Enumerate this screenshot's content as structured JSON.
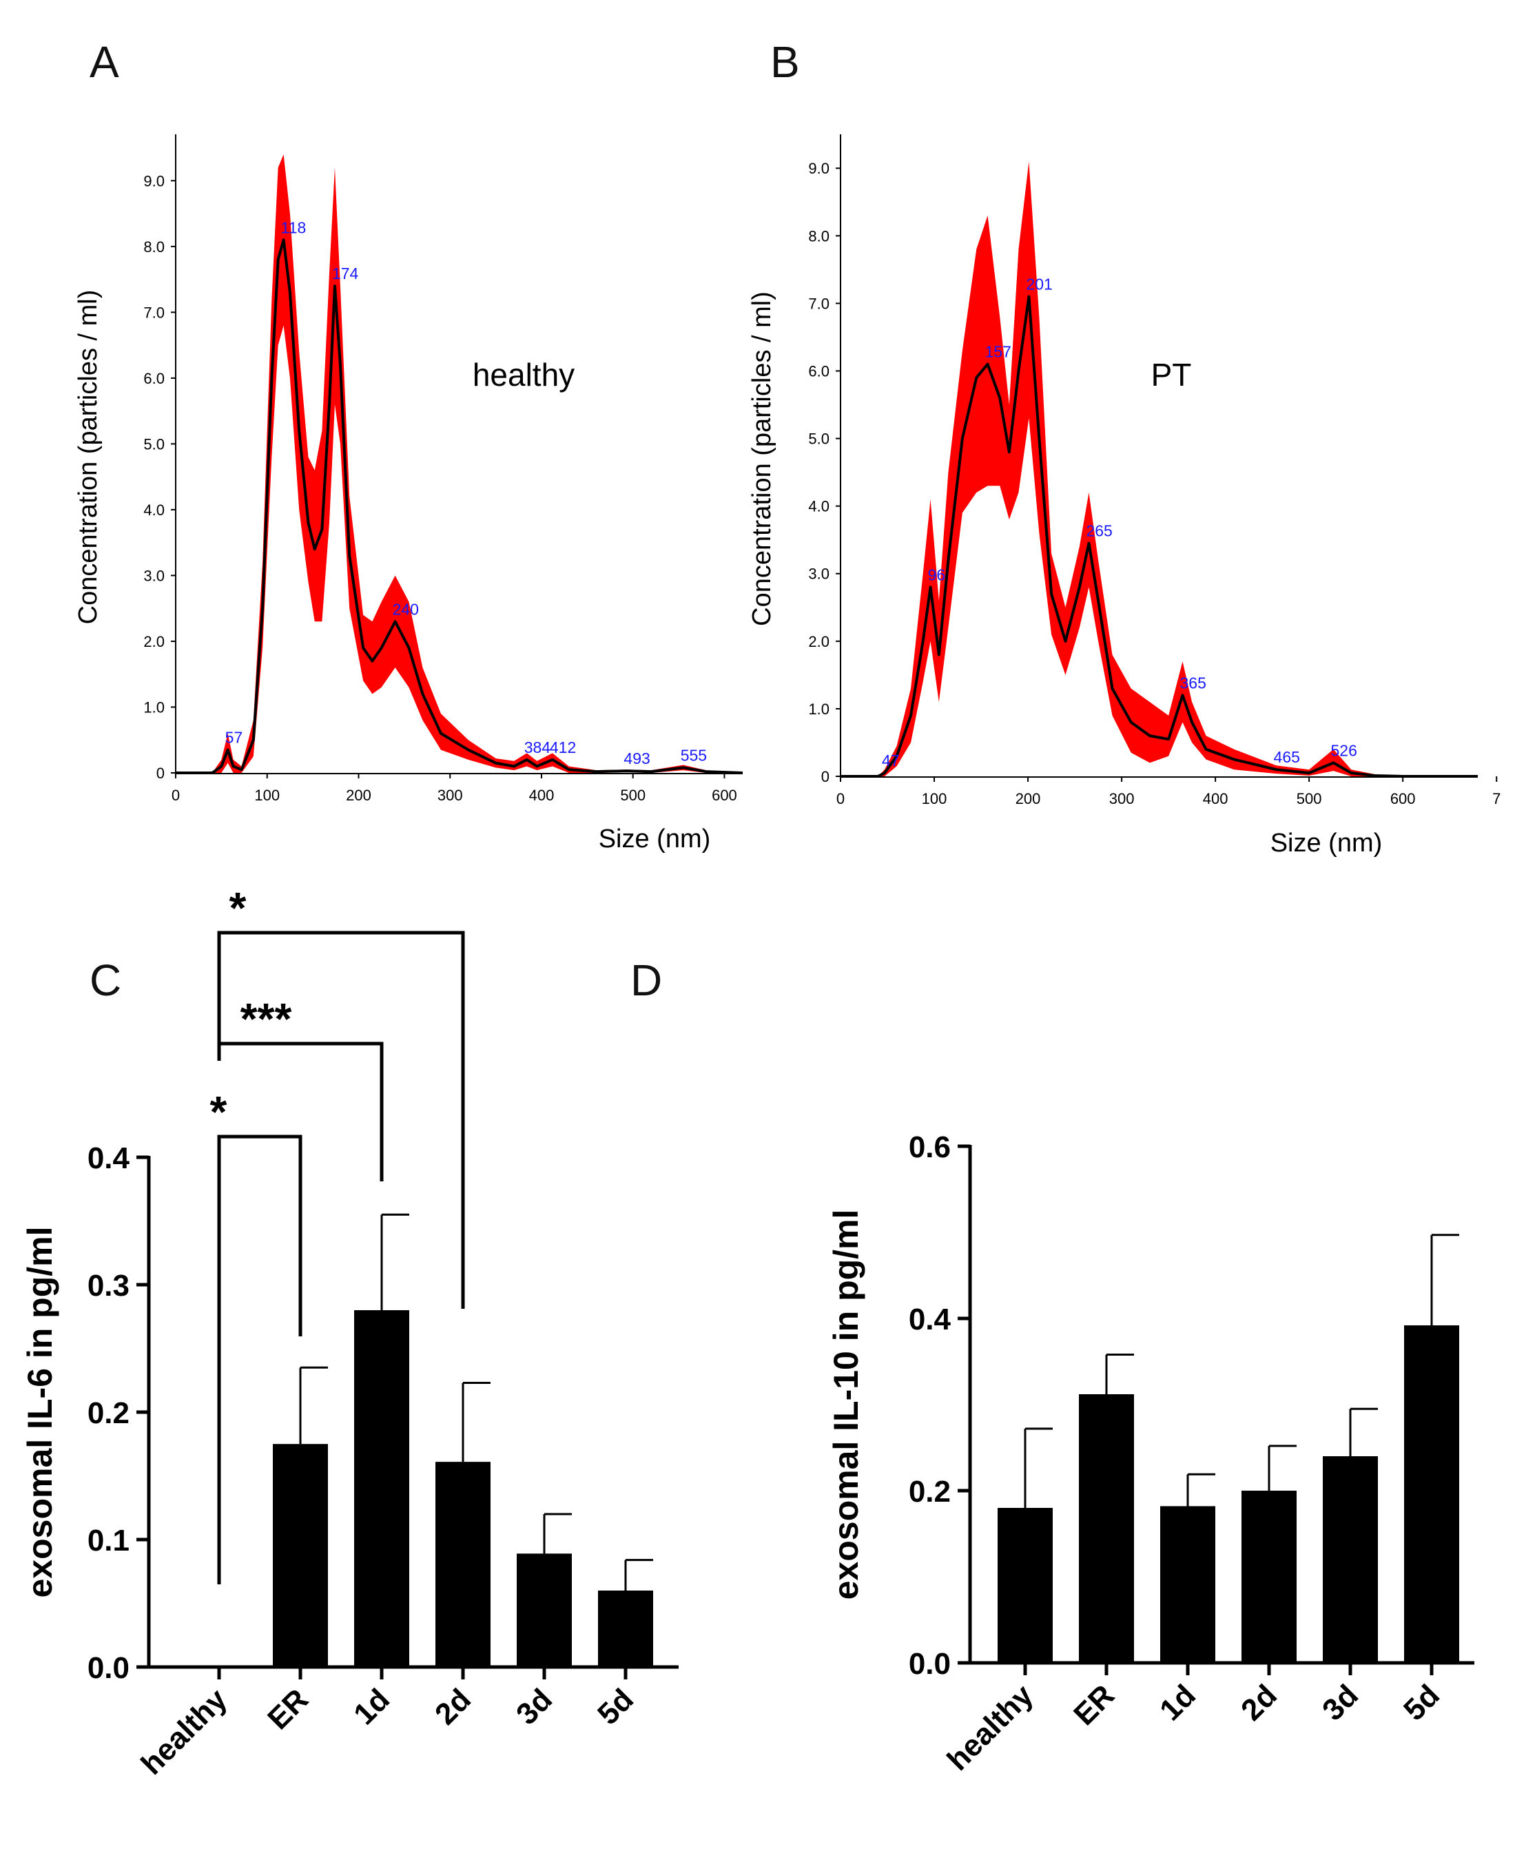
{
  "panels": {
    "A": "A",
    "B": "B",
    "C": "C",
    "D": "D"
  },
  "chart_data": [
    {
      "id": "A",
      "type": "line",
      "title": "",
      "annotation": "healthy",
      "xlabel": "Size (nm)",
      "ylabel": "Concentration (particles / ml)",
      "xlim": [
        0,
        620
      ],
      "ylim": [
        0,
        9.6
      ],
      "xticks": [
        "0",
        "100",
        "200",
        "300",
        "400",
        "500",
        "600"
      ],
      "yticks": [
        "0",
        "1.0",
        "2.0",
        "3.0",
        "4.0",
        "5.0",
        "6.0",
        "7.0",
        "8.0",
        "9.0"
      ],
      "x": [
        0,
        40,
        50,
        57,
        63,
        72,
        85,
        95,
        105,
        112,
        118,
        125,
        135,
        145,
        152,
        160,
        168,
        174,
        180,
        190,
        205,
        215,
        225,
        240,
        255,
        270,
        290,
        320,
        350,
        370,
        384,
        395,
        412,
        430,
        460,
        493,
        520,
        555,
        580,
        620
      ],
      "y": [
        0,
        0,
        0.1,
        0.35,
        0.1,
        0.05,
        0.5,
        2.5,
        6.0,
        7.8,
        8.1,
        7.3,
        5.2,
        3.8,
        3.4,
        3.7,
        5.6,
        7.4,
        6.2,
        3.3,
        1.9,
        1.7,
        1.9,
        2.3,
        1.9,
        1.2,
        0.6,
        0.35,
        0.15,
        0.1,
        0.2,
        0.1,
        0.2,
        0.05,
        0.02,
        0.03,
        0.02,
        0.08,
        0.02,
        0.0
      ],
      "y_upper": [
        0,
        0,
        0.2,
        0.6,
        0.2,
        0.1,
        0.8,
        3.2,
        7.2,
        9.2,
        9.4,
        8.5,
        6.4,
        4.8,
        4.6,
        5.2,
        7.6,
        9.2,
        7.4,
        4.2,
        2.4,
        2.3,
        2.6,
        3.0,
        2.6,
        1.6,
        0.9,
        0.5,
        0.22,
        0.18,
        0.3,
        0.18,
        0.3,
        0.1,
        0.04,
        0.05,
        0.04,
        0.12,
        0.04,
        0.0
      ],
      "y_lower": [
        0,
        0,
        0.0,
        0.15,
        0.0,
        0.0,
        0.25,
        1.9,
        4.8,
        6.5,
        6.8,
        6.0,
        4.0,
        2.9,
        2.3,
        2.3,
        3.8,
        5.6,
        5.0,
        2.5,
        1.4,
        1.2,
        1.3,
        1.6,
        1.3,
        0.8,
        0.35,
        0.2,
        0.08,
        0.04,
        0.1,
        0.04,
        0.1,
        0.0,
        0.0,
        0.01,
        0.0,
        0.04,
        0.0,
        0.0
      ],
      "peaks": [
        {
          "x": 57,
          "y": 0.35,
          "label": "57"
        },
        {
          "x": 118,
          "y": 8.1,
          "label": "118"
        },
        {
          "x": 174,
          "y": 7.4,
          "label": "174"
        },
        {
          "x": 240,
          "y": 2.3,
          "label": "240"
        },
        {
          "x": 384,
          "y": 0.2,
          "label": "384"
        },
        {
          "x": 412,
          "y": 0.2,
          "label": "412"
        },
        {
          "x": 493,
          "y": 0.03,
          "label": "493"
        },
        {
          "x": 555,
          "y": 0.08,
          "label": "555"
        }
      ]
    },
    {
      "id": "B",
      "type": "line",
      "title": "",
      "annotation": "PT",
      "xlabel": "Size (nm)",
      "ylabel": "Concentration (particles / ml)",
      "xlim": [
        0,
        680
      ],
      "ylim": [
        0,
        9.4
      ],
      "xticks": [
        "0",
        "100",
        "200",
        "300",
        "400",
        "500",
        "600",
        "7"
      ],
      "yticks": [
        "0",
        "1.0",
        "2.0",
        "3.0",
        "4.0",
        "5.0",
        "6.0",
        "7.0",
        "8.0",
        "9.0"
      ],
      "x": [
        0,
        40,
        47,
        60,
        75,
        88,
        96,
        105,
        115,
        130,
        145,
        157,
        170,
        180,
        190,
        201,
        212,
        225,
        240,
        255,
        265,
        275,
        290,
        310,
        330,
        350,
        365,
        375,
        390,
        420,
        465,
        500,
        526,
        545,
        570,
        600,
        680
      ],
      "y": [
        0,
        0,
        0.05,
        0.3,
        0.9,
        2.0,
        2.8,
        1.8,
        3.2,
        5.0,
        5.9,
        6.1,
        5.6,
        4.8,
        6.0,
        7.1,
        5.0,
        2.7,
        2.0,
        2.8,
        3.45,
        2.6,
        1.3,
        0.8,
        0.6,
        0.55,
        1.2,
        0.8,
        0.4,
        0.25,
        0.1,
        0.05,
        0.2,
        0.05,
        0.01,
        0.0,
        0.0
      ],
      "y_upper": [
        0,
        0,
        0.1,
        0.45,
        1.3,
        3.0,
        4.1,
        2.6,
        4.5,
        6.3,
        7.8,
        8.3,
        6.8,
        5.5,
        7.8,
        9.1,
        6.8,
        3.3,
        2.5,
        3.4,
        4.2,
        3.2,
        1.8,
        1.3,
        1.1,
        0.9,
        1.7,
        1.1,
        0.6,
        0.4,
        0.16,
        0.1,
        0.4,
        0.1,
        0.03,
        0.0,
        0.0
      ],
      "y_lower": [
        0,
        0,
        0.0,
        0.15,
        0.5,
        1.4,
        2.0,
        1.1,
        2.2,
        3.9,
        4.2,
        4.3,
        4.3,
        3.8,
        4.2,
        5.3,
        3.6,
        2.1,
        1.5,
        2.2,
        2.8,
        2.0,
        0.9,
        0.35,
        0.2,
        0.3,
        0.8,
        0.5,
        0.25,
        0.1,
        0.04,
        0.01,
        0.08,
        0.0,
        0.0,
        0.0,
        0.0
      ],
      "peaks": [
        {
          "x": 47,
          "y": 0.05,
          "label": "47"
        },
        {
          "x": 96,
          "y": 2.8,
          "label": "96"
        },
        {
          "x": 157,
          "y": 6.1,
          "label": "157"
        },
        {
          "x": 201,
          "y": 7.1,
          "label": "201"
        },
        {
          "x": 265,
          "y": 3.45,
          "label": "265"
        },
        {
          "x": 365,
          "y": 1.2,
          "label": "365"
        },
        {
          "x": 465,
          "y": 0.1,
          "label": "465"
        },
        {
          "x": 526,
          "y": 0.2,
          "label": "526"
        }
      ]
    },
    {
      "id": "C",
      "type": "bar",
      "title": "",
      "xlabel": "",
      "ylabel": "exosomal IL-6 in pg/ml",
      "ylim": [
        0,
        0.4
      ],
      "yticks": [
        "0.0",
        "0.1",
        "0.2",
        "0.3",
        "0.4"
      ],
      "categories": [
        "healthy",
        "ER",
        "1d",
        "2d",
        "3d",
        "5d"
      ],
      "values": [
        0.0,
        0.175,
        0.28,
        0.161,
        0.089,
        0.06
      ],
      "errors": [
        0.0,
        0.06,
        0.075,
        0.062,
        0.031,
        0.024
      ],
      "significance": [
        {
          "from": "healthy",
          "to": "ER",
          "label": "*"
        },
        {
          "from": "healthy",
          "to": "1d",
          "label": "***"
        },
        {
          "from": "healthy",
          "to": "2d",
          "label": "*"
        }
      ]
    },
    {
      "id": "D",
      "type": "bar",
      "title": "",
      "xlabel": "",
      "ylabel": "exosomal IL-10 in pg/ml",
      "ylim": [
        0,
        0.6
      ],
      "yticks": [
        "0.0",
        "0.2",
        "0.4",
        "0.6"
      ],
      "categories": [
        "healthy",
        "ER",
        "1d",
        "2d",
        "3d",
        "5d"
      ],
      "values": [
        0.18,
        0.312,
        0.182,
        0.2,
        0.24,
        0.392
      ],
      "errors": [
        0.092,
        0.046,
        0.037,
        0.052,
        0.055,
        0.105
      ]
    }
  ],
  "colors": {
    "band": "#ff0000",
    "line": "#000000",
    "peak_label": "#1a1aff",
    "bar": "#000000"
  }
}
